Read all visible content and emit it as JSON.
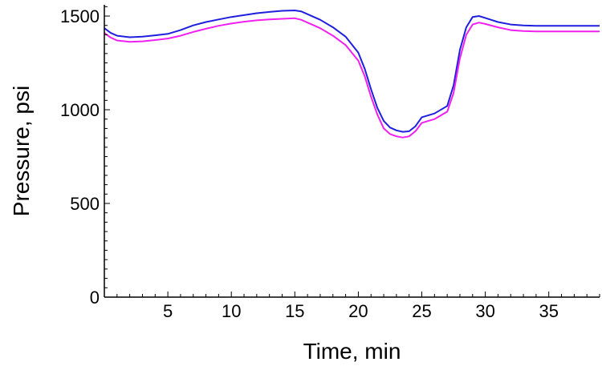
{
  "chart_data": {
    "type": "line",
    "title": "",
    "xlabel": "Time, min",
    "ylabel": "Pressure, psi",
    "xlim": [
      0,
      39
    ],
    "ylim": [
      0,
      1560
    ],
    "x_ticks": [
      5,
      10,
      15,
      20,
      25,
      30,
      35
    ],
    "x_tick_labels": [
      "5",
      "10",
      "15",
      "20",
      "25",
      "30",
      "35"
    ],
    "y_ticks": [
      0,
      500,
      1000,
      1500
    ],
    "y_tick_labels": [
      "0",
      "500",
      "1000",
      "1500"
    ],
    "y_minor_step": 50,
    "grid": false,
    "legend": "none",
    "colors": {
      "axis": "#000000",
      "series_1": "#1f1fe0",
      "series_2": "#f020f0"
    },
    "series": [
      {
        "color": "#1f1fe0",
        "x": [
          0,
          0.5,
          1,
          2,
          3,
          4,
          5,
          6,
          7,
          8,
          9,
          10,
          11,
          12,
          13,
          14,
          15,
          15.5,
          16,
          17,
          18,
          19,
          20,
          20.5,
          21,
          21.5,
          22,
          22.5,
          23,
          23.5,
          24,
          24.5,
          25,
          26,
          27,
          27.5,
          28,
          28.5,
          29,
          29.5,
          30,
          31,
          32,
          33,
          34,
          35,
          36,
          37,
          38,
          39
        ],
        "y": [
          1435,
          1410,
          1395,
          1387,
          1390,
          1397,
          1405,
          1425,
          1450,
          1468,
          1482,
          1495,
          1505,
          1515,
          1522,
          1528,
          1530,
          1525,
          1510,
          1480,
          1440,
          1390,
          1305,
          1220,
          1110,
          1010,
          940,
          905,
          890,
          882,
          885,
          912,
          960,
          980,
          1020,
          1130,
          1320,
          1440,
          1495,
          1500,
          1490,
          1468,
          1455,
          1450,
          1448,
          1448,
          1448,
          1448,
          1448,
          1448
        ]
      },
      {
        "color": "#f020f0",
        "x": [
          0,
          0.5,
          1,
          2,
          3,
          4,
          5,
          6,
          7,
          8,
          9,
          10,
          11,
          12,
          13,
          14,
          15,
          15.5,
          16,
          17,
          18,
          19,
          20,
          20.5,
          21,
          21.5,
          22,
          22.5,
          23,
          23.5,
          24,
          24.5,
          25,
          26,
          27,
          27.5,
          28,
          28.5,
          29,
          29.5,
          30,
          31,
          32,
          33,
          34,
          35,
          36,
          37,
          38,
          39
        ],
        "y": [
          1410,
          1385,
          1370,
          1362,
          1365,
          1372,
          1380,
          1395,
          1415,
          1432,
          1448,
          1460,
          1470,
          1477,
          1482,
          1485,
          1488,
          1480,
          1465,
          1435,
          1395,
          1345,
          1262,
          1180,
          1070,
          975,
          900,
          870,
          858,
          852,
          858,
          885,
          930,
          950,
          990,
          1090,
          1275,
          1400,
          1455,
          1465,
          1458,
          1440,
          1425,
          1420,
          1418,
          1418,
          1418,
          1418,
          1418,
          1418
        ]
      }
    ]
  }
}
